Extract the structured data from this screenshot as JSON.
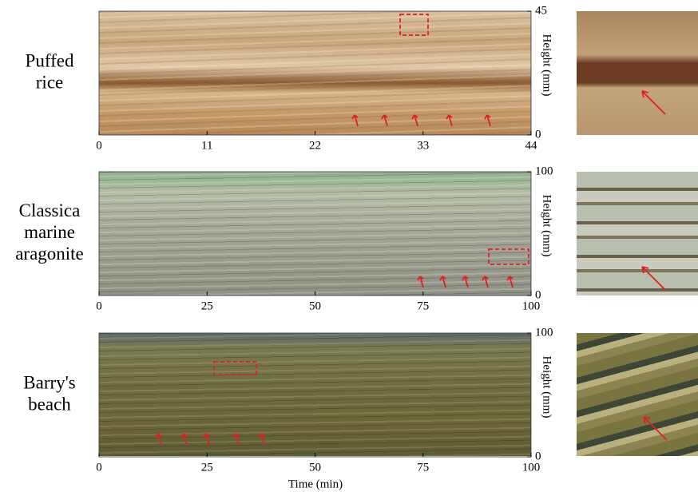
{
  "x_label": "Time (min)",
  "panels": [
    {
      "label": [
        "Puffed",
        "rice"
      ],
      "xlim": [
        0,
        44
      ],
      "xticks": [
        0,
        11,
        22,
        33,
        44
      ],
      "ylim": [
        0,
        45
      ],
      "yticks": [
        0,
        45
      ],
      "y_label": "Height (mm)"
    },
    {
      "label": [
        "Classica",
        "marine",
        "aragonite"
      ],
      "xlim": [
        0,
        100
      ],
      "xticks": [
        0,
        25,
        50,
        75,
        100
      ],
      "ylim": [
        0,
        100
      ],
      "yticks": [
        0,
        100
      ],
      "y_label": "Height (mm)"
    },
    {
      "label": [
        "Barry's",
        "beach"
      ],
      "xlim": [
        0,
        100
      ],
      "xticks": [
        0,
        25,
        50,
        75,
        100
      ],
      "ylim": [
        0,
        100
      ],
      "yticks": [
        0,
        100
      ],
      "y_label": "Height (mm)"
    }
  ]
}
